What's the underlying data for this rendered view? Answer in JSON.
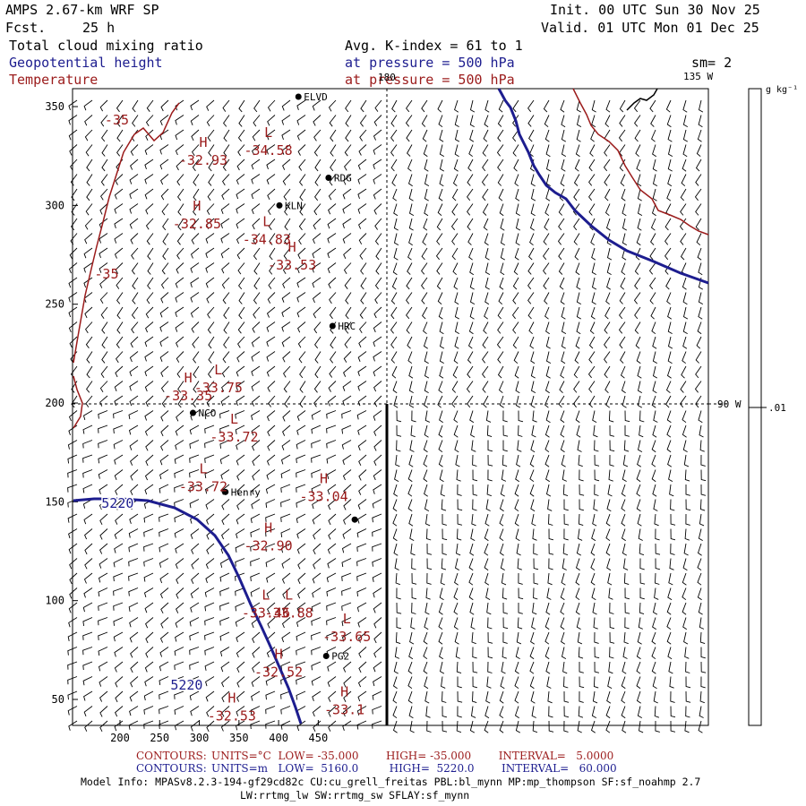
{
  "header": {
    "model": "AMPS 2.67-km WRF SP",
    "fcst_label": "Fcst.",
    "fcst_value": "25 h",
    "init": "Init. 00 UTC Sun 30 Nov 25",
    "valid": "Valid. 01 UTC Mon 01 Dec 25",
    "field1": "Total cloud mixing ratio",
    "field1_detail": "Avg. K-index = 61 to 1",
    "field2": "Geopotential height",
    "field2_detail": "at pressure = 500 hPa",
    "field3": "Temperature",
    "field3_detail": "at pressure = 500 hPa",
    "smoothing": "sm= 2"
  },
  "colors": {
    "temperature": "#9b1b1b",
    "height": "#1d1d8f",
    "coast": "#1d1d8f",
    "barbs": "#000000"
  },
  "map": {
    "x_ticks": [
      "200",
      "250",
      "300",
      "350",
      "400",
      "450"
    ],
    "y_ticks": [
      "350",
      "300",
      "250",
      "200",
      "150",
      "100",
      "50"
    ],
    "lon_labels": [
      "180",
      "135 W",
      "90 W"
    ],
    "stations": [
      {
        "name": "ELVD",
        "x": 425,
        "y": 355
      },
      {
        "name": "RDG",
        "x": 463,
        "y": 314
      },
      {
        "name": "KLN",
        "x": 401,
        "y": 300
      },
      {
        "name": "HRC",
        "x": 468,
        "y": 239
      },
      {
        "name": "NCO",
        "x": 292,
        "y": 195
      },
      {
        "name": "Henry",
        "x": 333,
        "y": 155
      },
      {
        "name": "PG2",
        "x": 460,
        "y": 72
      },
      {
        "name": "",
        "x": 496,
        "y": 141
      }
    ],
    "extrema": [
      {
        "t": "H",
        "v": "-32.93",
        "x": 305,
        "y": 325
      },
      {
        "t": "L",
        "v": "-34.58",
        "x": 387,
        "y": 330
      },
      {
        "t": "H",
        "v": "-32.85",
        "x": 297,
        "y": 293
      },
      {
        "t": "L",
        "v": "-34.83",
        "x": 385,
        "y": 285
      },
      {
        "t": "H",
        "v": "-33.53",
        "x": 417,
        "y": 272
      },
      {
        "t": "L",
        "v": "-33.75",
        "x": 324,
        "y": 210
      },
      {
        "t": "H",
        "v": "-33.35",
        "x": 286,
        "y": 206
      },
      {
        "t": "L",
        "v": "-33.72",
        "x": 344,
        "y": 185
      },
      {
        "t": "L",
        "v": "-33.72",
        "x": 305,
        "y": 160
      },
      {
        "t": "H",
        "v": "-33.04",
        "x": 457,
        "y": 155
      },
      {
        "t": "H",
        "v": "-32.90",
        "x": 387,
        "y": 130
      },
      {
        "t": "L",
        "v": "-33.46",
        "x": 384,
        "y": 96
      },
      {
        "t": "L",
        "v": "-33.88",
        "x": 413,
        "y": 96
      },
      {
        "t": "L",
        "v": "-33.65",
        "x": 486,
        "y": 84
      },
      {
        "t": "H",
        "v": "-32.52",
        "x": 400,
        "y": 66
      },
      {
        "t": "H",
        "v": "-33.1",
        "x": 483,
        "y": 47
      },
      {
        "t": "H",
        "v": "-32.53",
        "x": 341,
        "y": 44
      }
    ],
    "temp_labels": [
      {
        "v": "-35",
        "x": 196,
        "y": 341
      },
      {
        "v": "-35",
        "x": 183,
        "y": 263
      }
    ],
    "height_labels": [
      {
        "v": "5220",
        "x": 197,
        "y": 147
      },
      {
        "v": "5220",
        "x": 284,
        "y": 55
      }
    ]
  },
  "colorbar": {
    "units": "g kg⁻¹",
    "tick": ".01"
  },
  "footer": {
    "line1_lead": "CONTOURS:",
    "line1": "UNITS=°C  LOW= -35.000        HIGH= -35.000        INTERVAL=   5.0000",
    "line2_lead": "CONTOURS:",
    "line2": "UNITS=m   LOW=  5160.0         HIGH=  5220.0        INTERVAL=   60.000",
    "model_info": "Model Info: MPASv8.2.3-194-gf29cd82c CU:cu_grell_freitas PBL:bl_mynn MP:mp_thompson SF:sf_noahmp 2.7",
    "model_info2": "LW:rrtmg_lw SW:rrtmg_sw SFLAY:sf_mynn"
  }
}
